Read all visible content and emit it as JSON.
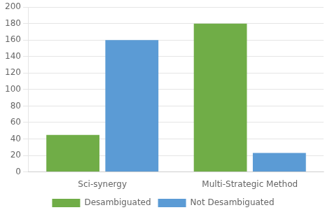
{
  "chart_data": {
    "type": "bar",
    "categories": [
      "Sci-synergy",
      "Multi-Strategic Method"
    ],
    "series": [
      {
        "name": "Desambiguated",
        "color": "#70ad47",
        "values": [
          45,
          180
        ]
      },
      {
        "name": "Not Desambiguated",
        "color": "#5b9bd5",
        "values": [
          160,
          23
        ]
      }
    ],
    "ylim": [
      0,
      200
    ],
    "yticks": [
      0,
      20,
      40,
      60,
      80,
      100,
      120,
      140,
      160,
      180,
      200
    ],
    "grid": "y",
    "legend": "bottom"
  }
}
